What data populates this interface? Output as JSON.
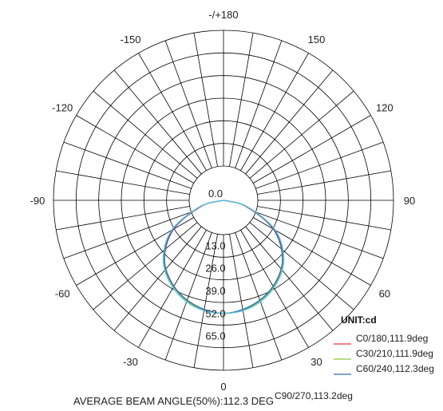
{
  "chart_data": {
    "type": "polar",
    "unit_label": "UNIT:cd",
    "footer": "AVERAGE BEAM ANGLE(50%):112.3 DEG",
    "angle_labels": [
      {
        "deg": 180,
        "text": "-/+180"
      },
      {
        "deg": 150,
        "text": "150"
      },
      {
        "deg": -150,
        "text": "-150"
      },
      {
        "deg": 120,
        "text": "120"
      },
      {
        "deg": -120,
        "text": "-120"
      },
      {
        "deg": 90,
        "text": "90"
      },
      {
        "deg": -90,
        "text": "-90"
      },
      {
        "deg": 60,
        "text": "60"
      },
      {
        "deg": -60,
        "text": "-60"
      },
      {
        "deg": 30,
        "text": "30"
      },
      {
        "deg": -30,
        "text": "-30"
      },
      {
        "deg": 0,
        "text": "0"
      }
    ],
    "radial_ticks": [
      "0.0",
      "13.0",
      "26.0",
      "39.0",
      "52.0",
      "65.0"
    ],
    "radial_range": [
      0,
      78
    ],
    "series": [
      {
        "name": "C0/180,111.9deg",
        "color": "#e8334a",
        "angles": [
          -90,
          -75,
          -60,
          -45,
          -30,
          -15,
          0,
          15,
          30,
          45,
          60,
          75,
          90
        ],
        "values": [
          0,
          13,
          33,
          48,
          57,
          63,
          65,
          63,
          57,
          48,
          33,
          13,
          0
        ]
      },
      {
        "name": "C30/210,111.9deg",
        "color": "#8cc63f",
        "angles": [
          -90,
          -75,
          -60,
          -45,
          -30,
          -15,
          0,
          15,
          30,
          45,
          60,
          75,
          90
        ],
        "values": [
          0,
          14,
          34,
          48.5,
          57.5,
          63,
          65,
          63,
          57.5,
          48.5,
          34,
          14,
          0
        ]
      },
      {
        "name": "C60/240,112.3deg",
        "color": "#2b6cb0",
        "angles": [
          -90,
          -75,
          -60,
          -45,
          -30,
          -15,
          0,
          15,
          30,
          45,
          60,
          75,
          90
        ],
        "values": [
          0,
          13.5,
          33.5,
          48,
          57,
          62.5,
          65,
          62.5,
          57,
          48,
          33.5,
          13.5,
          0
        ]
      },
      {
        "name": "C90/270,113.2deg",
        "color": "#5bc0de",
        "angles": [
          -90,
          -75,
          -60,
          -45,
          -30,
          -15,
          0,
          15,
          30,
          45,
          60,
          75,
          90
        ],
        "values": [
          0,
          14,
          34.5,
          49,
          58,
          63.5,
          65,
          63.5,
          58,
          49,
          34.5,
          14,
          0
        ]
      }
    ]
  }
}
